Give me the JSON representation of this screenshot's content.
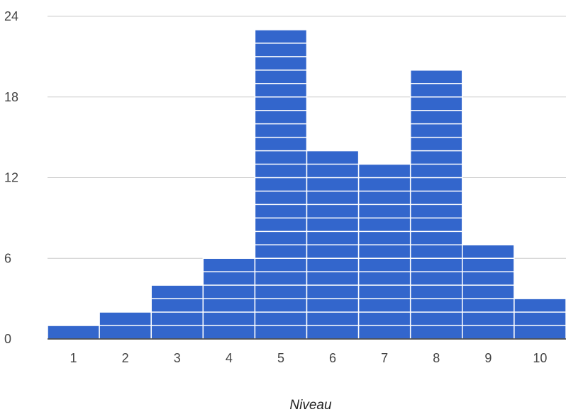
{
  "chart_data": {
    "type": "bar",
    "title": "",
    "xlabel": "Niveau",
    "ylabel": "",
    "categories": [
      "1",
      "2",
      "3",
      "4",
      "5",
      "6",
      "7",
      "8",
      "9",
      "10"
    ],
    "values": [
      1,
      2,
      4,
      6,
      23,
      14,
      13,
      20,
      7,
      3
    ],
    "yticks": [
      0,
      6,
      12,
      18,
      24
    ],
    "ylim": [
      0,
      24
    ],
    "grid": true,
    "legend": "none",
    "bar_style": "stacked unit blocks",
    "colors": {
      "bar": "#3366cc",
      "block_separator": "#ffffff",
      "grid": "#cccccc",
      "baseline": "#333333"
    }
  }
}
